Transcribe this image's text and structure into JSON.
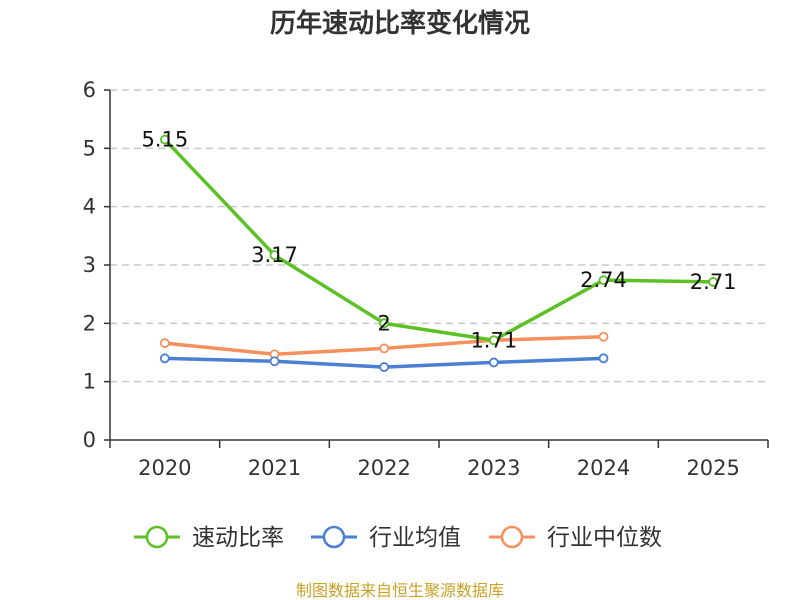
{
  "chart_data": {
    "type": "line",
    "title": "历年速动比率变化情况",
    "categories": [
      "2020",
      "2021",
      "2022",
      "2023",
      "2024",
      "2025"
    ],
    "ylim": [
      0,
      6
    ],
    "yticks": [
      "0",
      "1",
      "2",
      "3",
      "4",
      "5",
      "6"
    ],
    "grid": true,
    "legend_position": "bottom",
    "series": [
      {
        "name": "速动比率",
        "color": "#5cc125",
        "values": [
          5.15,
          3.17,
          2.0,
          1.71,
          2.74,
          2.71
        ],
        "labels": [
          "5.15",
          "3.17",
          "2",
          "1.71",
          "2.74",
          "2.71"
        ]
      },
      {
        "name": "行业均值",
        "color": "#4a7fd4",
        "values": [
          1.4,
          1.35,
          1.25,
          1.33,
          1.4,
          null
        ]
      },
      {
        "name": "行业中位数",
        "color": "#f5905c",
        "values": [
          1.66,
          1.47,
          1.57,
          1.71,
          1.77,
          null
        ]
      }
    ],
    "source": "制图数据来自恒生聚源数据库"
  }
}
